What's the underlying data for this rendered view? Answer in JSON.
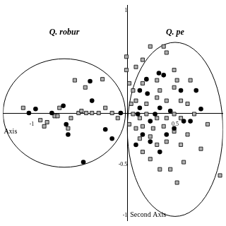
{
  "chart_data": {
    "type": "scatter",
    "xlabel": "Axis",
    "ylabel": "Second Axis",
    "xlim": [
      -1.3,
      1.0
    ],
    "ylim": [
      -1.05,
      1.05
    ],
    "xticks": [
      -1,
      0.5
    ],
    "yticks": [
      -1,
      -0.5,
      1
    ],
    "grid": false,
    "ellipses": [
      {
        "label": "Q. robur",
        "cx": -0.66,
        "cy": 0,
        "rx": 0.64,
        "ry": 0.53
      },
      {
        "label": "Q. pe",
        "cx": 0.5,
        "cy": -0.16,
        "rx": 0.5,
        "ry": 0.85
      }
    ],
    "series": [
      {
        "color": "#000000",
        "marker": "circle",
        "x": [
          -1.03,
          -0.96,
          -0.79,
          -0.67,
          -0.64,
          -0.39,
          -0.37,
          -0.23,
          -0.46,
          -0.16,
          -0.07,
          -0.62,
          0.2,
          0.33,
          0.38,
          0.21,
          0.56,
          0.13,
          0.24,
          0.49,
          0.59,
          0.77,
          0.72,
          0.66,
          0.41,
          0.16,
          0.09,
          0.24,
          0.34,
          0.11,
          0.29,
          0.34,
          0.45,
          0.13
        ],
        "y": [
          0,
          0.04,
          0,
          0.07,
          -0.11,
          0.31,
          0.12,
          -0.16,
          -0.48,
          -0.25,
          0,
          -0.21,
          0.33,
          0.39,
          0.37,
          0.19,
          0.22,
          0.05,
          -0.08,
          -0.15,
          -0.08,
          0.04,
          0.22,
          -0.08,
          -0.21,
          -0.21,
          -0.31,
          -0.28,
          -0.38,
          -0.01,
          -0.01,
          0.05,
          0.02,
          0.22
        ]
      },
      {
        "color": "#b0b0b0",
        "marker": "square",
        "x": [
          -1.09,
          -0.91,
          -0.87,
          -0.84,
          -0.76,
          -0.73,
          -0.59,
          -0.51,
          -0.48,
          -0.43,
          -0.37,
          -0.3,
          -0.23,
          -0.16,
          -0.1,
          -0.44,
          -0.62,
          -0.55,
          -0.26,
          -0.71,
          -0.01,
          -0.01,
          0.09,
          0.16,
          0.24,
          0.38,
          0.41,
          0.49,
          0.31,
          0.52,
          0.66,
          0.49,
          0.34,
          0.16,
          0.06,
          0.09,
          0.2,
          0.31,
          0.41,
          0.56,
          0.63,
          0.06,
          0.13,
          0.2,
          0.31,
          0.41,
          0.49,
          0.56,
          0.7,
          0.84,
          0.02,
          0.09,
          0.16,
          0.27,
          0.38,
          0.49,
          0.63,
          0.24,
          0.31,
          0.41,
          0.56,
          0.16,
          0.24,
          0.34,
          0.45,
          0.59,
          0.52,
          0.77,
          0.97,
          0.13,
          0.04,
          0.02
        ],
        "y": [
          0.05,
          -0.07,
          -0.13,
          -0.09,
          -0.03,
          -0.03,
          -0.05,
          0,
          0.02,
          0,
          0,
          0,
          0.05,
          0,
          -0.05,
          0.25,
          -0.15,
          0.32,
          0.33,
          0.05,
          0.55,
          0.42,
          0.45,
          0.52,
          0.65,
          0.65,
          0.59,
          0.42,
          0.32,
          0.32,
          0.32,
          0.25,
          0.22,
          0.29,
          0.22,
          0.12,
          0.09,
          0.15,
          0.12,
          0.12,
          0.09,
          -0.01,
          -0.05,
          -0.01,
          -0.05,
          -0.05,
          -0.01,
          -0.05,
          -0.01,
          -0.11,
          -0.11,
          -0.15,
          -0.13,
          -0.15,
          -0.13,
          -0.18,
          -0.21,
          -0.23,
          -0.31,
          -0.28,
          -0.31,
          -0.38,
          -0.45,
          -0.55,
          -0.55,
          -0.48,
          -0.68,
          -0.35,
          -0.61,
          -0.25,
          0.09,
          0.29
        ]
      }
    ]
  }
}
